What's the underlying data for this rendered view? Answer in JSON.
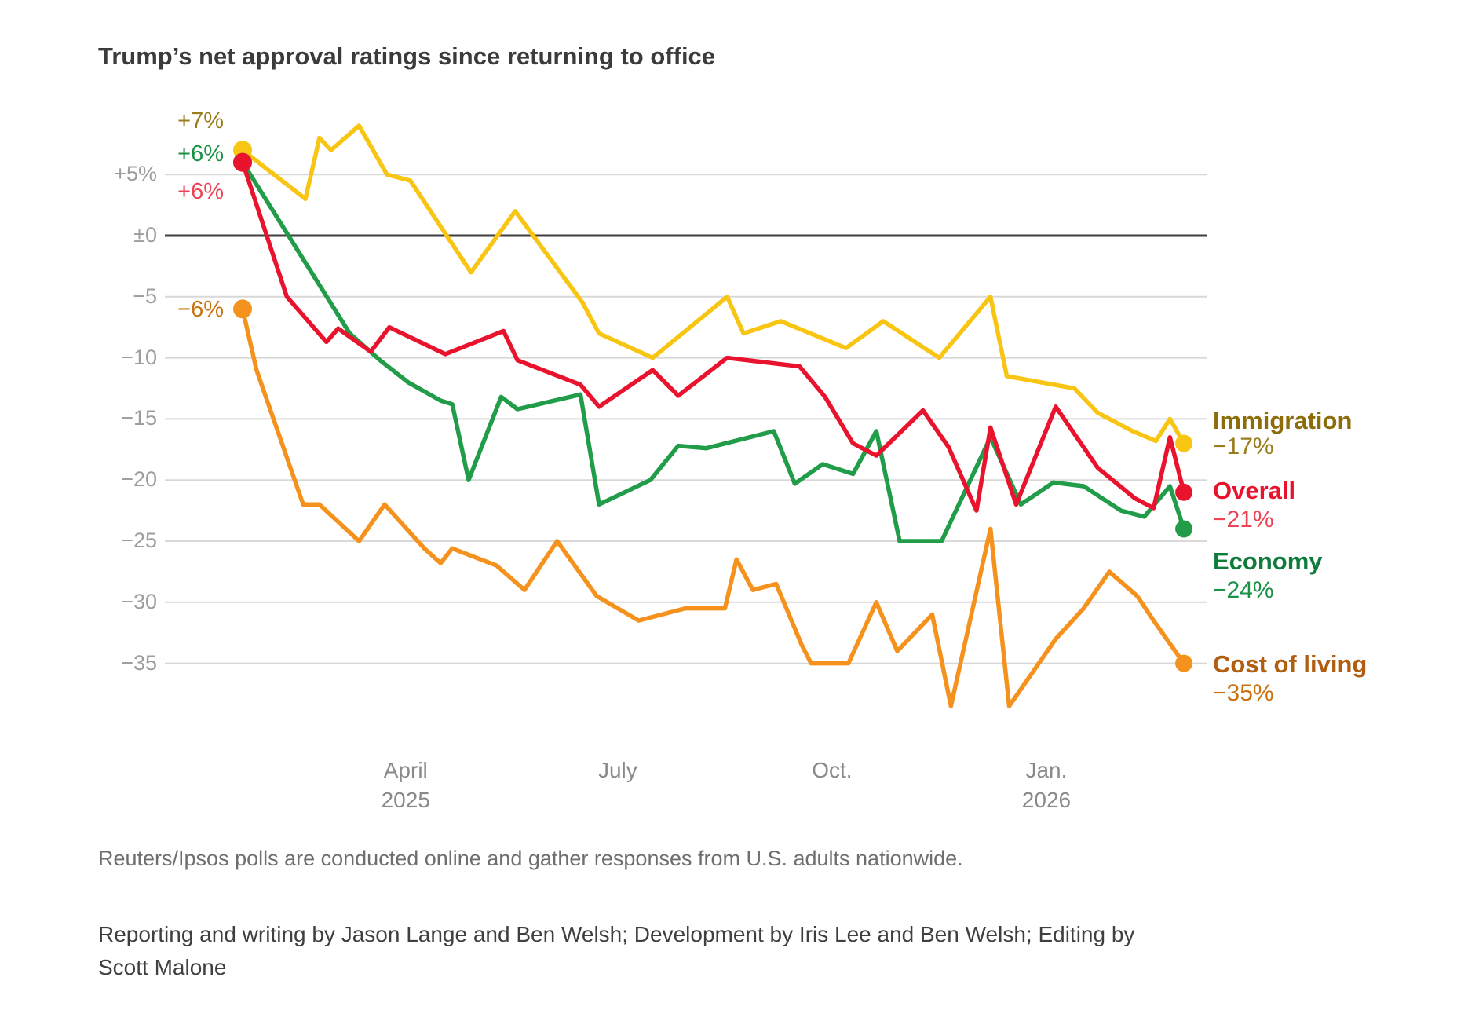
{
  "title": "Trump’s net approval ratings since returning to office",
  "footnote": "Reuters/Ipsos polls are conducted online and gather responses from U.S. adults nationwide.",
  "credit_line1": "Reporting and writing by Jason Lange and Ben Welsh; Development by Iris Lee and Ben Welsh; Editing by",
  "credit_line2": "Scott Malone",
  "chart_data": {
    "type": "line",
    "x_unit": "poll date, days since 2025-01-21",
    "xlim_days": [
      0,
      404
    ],
    "ylim": [
      -40,
      12
    ],
    "grid": true,
    "zero_line": 0,
    "legend_position": "right",
    "x_ticks": [
      {
        "label": "April",
        "sublabel": "2025",
        "t": 70
      },
      {
        "label": "July",
        "t": 161
      },
      {
        "label": "Oct.",
        "t": 253
      },
      {
        "label": "Jan.",
        "sublabel": "2026",
        "t": 345
      }
    ],
    "y_ticks": [
      {
        "label": "+5%",
        "value": 5
      },
      {
        "label": "±0",
        "value": 0
      },
      {
        "label": "−5",
        "value": -5
      },
      {
        "label": "−10",
        "value": -10
      },
      {
        "label": "−15",
        "value": -15
      },
      {
        "label": "−20",
        "value": -20
      },
      {
        "label": "−25",
        "value": -25
      },
      {
        "label": "−30",
        "value": -30
      },
      {
        "label": "−35",
        "value": -35
      }
    ],
    "series": [
      {
        "name": "Immigration",
        "start_label": "+7%",
        "end_label": "−17%",
        "color": "#f9c513",
        "label_color": "#8c6d0a",
        "value_color": "#9a7e1e",
        "points": [
          [
            0,
            7
          ],
          [
            27,
            3
          ],
          [
            33,
            8
          ],
          [
            38,
            7
          ],
          [
            50,
            9
          ],
          [
            62,
            5
          ],
          [
            72,
            4.5
          ],
          [
            98,
            -3
          ],
          [
            117,
            2
          ],
          [
            146,
            -5.5
          ],
          [
            153,
            -8
          ],
          [
            176,
            -10
          ],
          [
            208,
            -5
          ],
          [
            215,
            -8
          ],
          [
            231,
            -7
          ],
          [
            259,
            -9.2
          ],
          [
            275,
            -7
          ],
          [
            299,
            -10
          ],
          [
            321,
            -5
          ],
          [
            328,
            -11.5
          ],
          [
            357,
            -12.5
          ],
          [
            367,
            -14.5
          ],
          [
            382,
            -16
          ],
          [
            392,
            -16.8
          ],
          [
            398,
            -15
          ],
          [
            404,
            -17
          ]
        ]
      },
      {
        "name": "Overall",
        "start_label": "+6%",
        "end_label": "−21%",
        "color": "#e9132e",
        "label_color": "#e9132e",
        "value_color": "#ee4255",
        "points": [
          [
            0,
            6
          ],
          [
            19,
            -5
          ],
          [
            36,
            -8.7
          ],
          [
            41,
            -7.6
          ],
          [
            55,
            -9.5
          ],
          [
            63,
            -7.5
          ],
          [
            87,
            -9.7
          ],
          [
            112,
            -7.8
          ],
          [
            118,
            -10.2
          ],
          [
            145,
            -12.2
          ],
          [
            153,
            -14
          ],
          [
            176,
            -11
          ],
          [
            187,
            -13.1
          ],
          [
            208,
            -10
          ],
          [
            239,
            -10.7
          ],
          [
            250,
            -13.2
          ],
          [
            262,
            -17
          ],
          [
            272,
            -18
          ],
          [
            292,
            -14.3
          ],
          [
            303,
            -17.3
          ],
          [
            315,
            -22.5
          ],
          [
            321,
            -15.7
          ],
          [
            332,
            -22
          ],
          [
            349,
            -14
          ],
          [
            367,
            -19
          ],
          [
            383,
            -21.5
          ],
          [
            391,
            -22.3
          ],
          [
            398,
            -16.5
          ],
          [
            404,
            -21
          ]
        ]
      },
      {
        "name": "Economy",
        "start_label": "+6%",
        "end_label": "−24%",
        "color": "#219c49",
        "label_color": "#107c3c",
        "value_color": "#1b9146",
        "points": [
          [
            0,
            6
          ],
          [
            46,
            -8
          ],
          [
            59,
            -10.2
          ],
          [
            71,
            -12
          ],
          [
            85,
            -13.5
          ],
          [
            90,
            -13.8
          ],
          [
            97,
            -20
          ],
          [
            111,
            -13.2
          ],
          [
            118,
            -14.2
          ],
          [
            145,
            -13
          ],
          [
            153,
            -22
          ],
          [
            175,
            -20
          ],
          [
            187,
            -17.2
          ],
          [
            199,
            -17.4
          ],
          [
            228,
            -16
          ],
          [
            237,
            -20.3
          ],
          [
            249,
            -18.7
          ],
          [
            262,
            -19.5
          ],
          [
            272,
            -16
          ],
          [
            282,
            -25
          ],
          [
            300,
            -25
          ],
          [
            321,
            -16.5
          ],
          [
            334,
            -22
          ],
          [
            348,
            -20.2
          ],
          [
            361,
            -20.5
          ],
          [
            377,
            -22.5
          ],
          [
            387,
            -23
          ],
          [
            398,
            -20.5
          ],
          [
            404,
            -24
          ]
        ]
      },
      {
        "name": "Cost of living",
        "start_label": "−6%",
        "end_label": "−35%",
        "color": "#f5921e",
        "label_color": "#b15e11",
        "value_color": "#c9720e",
        "points": [
          [
            0,
            -6
          ],
          [
            6,
            -11
          ],
          [
            26,
            -22
          ],
          [
            33,
            -22
          ],
          [
            50,
            -25
          ],
          [
            61,
            -22
          ],
          [
            78,
            -25.6
          ],
          [
            85,
            -26.8
          ],
          [
            90,
            -25.6
          ],
          [
            109,
            -27
          ],
          [
            121,
            -29
          ],
          [
            135,
            -25
          ],
          [
            152,
            -29.5
          ],
          [
            170,
            -31.5
          ],
          [
            190,
            -30.5
          ],
          [
            207,
            -30.5
          ],
          [
            212,
            -26.5
          ],
          [
            219,
            -29
          ],
          [
            229,
            -28.5
          ],
          [
            240,
            -33.5
          ],
          [
            244,
            -35
          ],
          [
            260,
            -35
          ],
          [
            272,
            -30
          ],
          [
            281,
            -34
          ],
          [
            296,
            -31
          ],
          [
            304,
            -38.5
          ],
          [
            321,
            -24
          ],
          [
            329,
            -38.5
          ],
          [
            349,
            -33
          ],
          [
            361,
            -30.5
          ],
          [
            372,
            -27.5
          ],
          [
            384,
            -29.5
          ],
          [
            391,
            -31.5
          ],
          [
            404,
            -35
          ]
        ]
      }
    ]
  }
}
